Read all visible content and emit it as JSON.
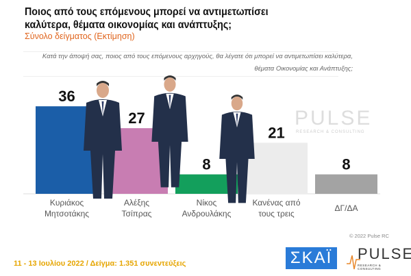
{
  "header": {
    "title": "Ποιος από τους επόμενους μπορεί να αντιμετωπίσει καλύτερα, θέματα οικονομίας και ανάπτυξης;",
    "subtitle": "Σύνολο δείγματος   (Εκτίμηση)",
    "question": "Κατά την άποψή σας, ποιος  από τους επόμενους αρχηγούς, θα λέγατε ότι μπορεί να αντιμετωπίσει καλύτερα, θέματα Οικονομίας και Ανάπτυξης;"
  },
  "chart_data": {
    "type": "bar",
    "title": "Ποιος από τους επόμενους μπορεί να αντιμετωπίσει καλύτερα, θέματα οικονομίας και ανάπτυξης;",
    "categories": [
      [
        "Κυριάκος",
        "Μητσοτάκης"
      ],
      [
        "Αλέξης",
        "Τσίπρας"
      ],
      [
        "Νίκος",
        "Ανδρουλάκης"
      ],
      [
        "Κανένας από",
        "τους τρεις"
      ],
      [
        "ΔΓ/ΔΑ"
      ]
    ],
    "values": [
      36,
      27,
      8,
      21,
      8
    ],
    "colors": [
      "#1b5ea8",
      "#c87db2",
      "#139f5c",
      "#ececec",
      "#a3a3a3"
    ],
    "ylim": [
      0,
      40
    ],
    "xlabel": "",
    "ylabel": ""
  },
  "watermark": {
    "name": "PULSE",
    "tag": "RESEARCH & CONSULTING"
  },
  "footer": {
    "date_sample": "11 - 13  Ιουλίου  2022  /  Δείγμα:  1.351 συνεντεύξεις",
    "copyright": "© 2022 Pulse RC",
    "skai_logo": "ΣΚΑΪ",
    "pulse_logo": "PULSE",
    "pulse_tag": "RESEARCH & CONSULTING"
  }
}
